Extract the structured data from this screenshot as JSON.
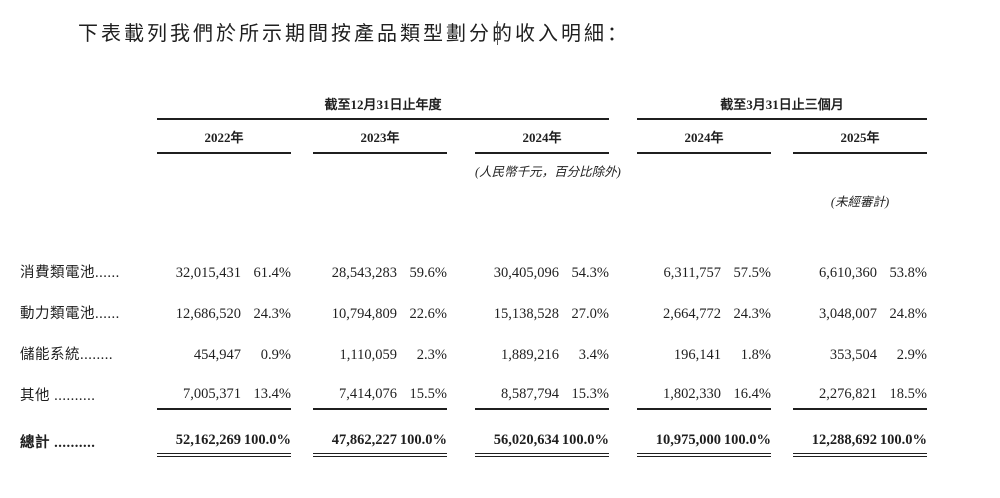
{
  "title": "下表載列我們於所示期間按產品類型劃分的收入明細：",
  "table": {
    "groups": [
      {
        "label": "截至12月31日止年度",
        "years": [
          "2022年",
          "2023年",
          "2024年"
        ]
      },
      {
        "label": "截至3月31日止三個月",
        "years": [
          "2024年",
          "2025年"
        ]
      }
    ],
    "unit_note": "(人民幣千元，百分比除外)",
    "audit_note": "(未經審計)",
    "rows": [
      {
        "label": "消費類電池......",
        "cells": [
          "32,015,431",
          "61.4%",
          "28,543,283",
          "59.6%",
          "30,405,096",
          "54.3%",
          "6,311,757",
          "57.5%",
          "6,610,360",
          "53.8%"
        ]
      },
      {
        "label": "動力類電池......",
        "cells": [
          "12,686,520",
          "24.3%",
          "10,794,809",
          "22.6%",
          "15,138,528",
          "27.0%",
          "2,664,772",
          "24.3%",
          "3,048,007",
          "24.8%"
        ]
      },
      {
        "label": "儲能系統........",
        "cells": [
          "454,947",
          "0.9%",
          "1,110,059",
          "2.3%",
          "1,889,216",
          "3.4%",
          "196,141",
          "1.8%",
          "353,504",
          "2.9%"
        ]
      },
      {
        "label": "其他 ..........",
        "cells": [
          "7,005,371",
          "13.4%",
          "7,414,076",
          "15.5%",
          "8,587,794",
          "15.3%",
          "1,802,330",
          "16.4%",
          "2,276,821",
          "18.5%"
        ]
      }
    ],
    "total_row": {
      "label": "總計 ..........",
      "cells": [
        "52,162,269",
        "100.0%",
        "47,862,227",
        "100.0%",
        "56,020,634",
        "100.0%",
        "10,975,000",
        "100.0%",
        "12,288,692",
        "100.0%"
      ]
    }
  }
}
